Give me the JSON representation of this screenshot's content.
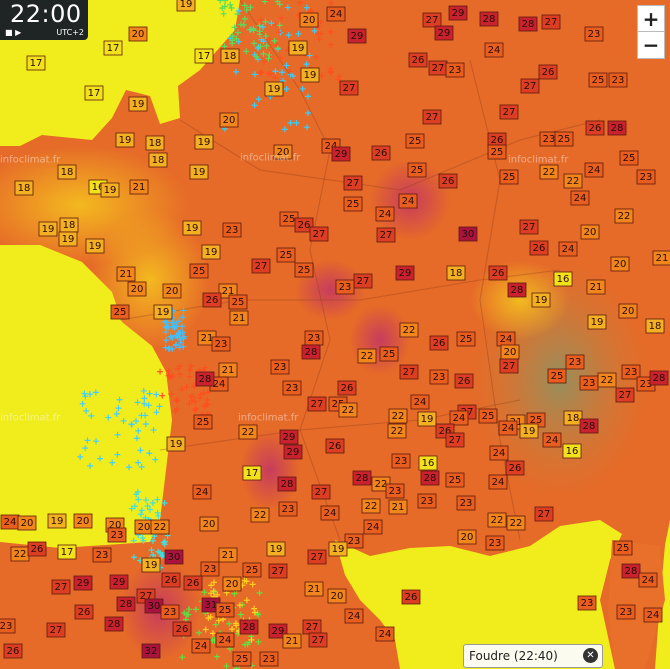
{
  "clock": {
    "time": "22:00",
    "timezone": "UTC+2"
  },
  "watermarks": [
    "infoclimat.fr",
    "infoclimat.fr",
    "infoclimat.fr",
    "infoclimat.fr",
    "infoclimat.fr"
  ],
  "zoom": {
    "in": "+",
    "out": "−"
  },
  "lightning_legend": "Foudre (22:40)",
  "temperatures": [
    17,
    20,
    19,
    17,
    17,
    18,
    19,
    20,
    24,
    29,
    27,
    29,
    28,
    28,
    27,
    29,
    24,
    23,
    17,
    19,
    19,
    19,
    27,
    26,
    27,
    23,
    26,
    25,
    23,
    27,
    20,
    19,
    18,
    19,
    18,
    27,
    27,
    23,
    25,
    26,
    28,
    25,
    26,
    20,
    24,
    29,
    26,
    25,
    18,
    25,
    25,
    22,
    24,
    23,
    18,
    16,
    19,
    21,
    19,
    27,
    26,
    25,
    22,
    24,
    25,
    24,
    24,
    22,
    18,
    19,
    19,
    19,
    23,
    25,
    26,
    27,
    27,
    30,
    27,
    20,
    19,
    19,
    25,
    27,
    25,
    25,
    27,
    29,
    18,
    26,
    26,
    24,
    20,
    21,
    21,
    20,
    20,
    21,
    26,
    25,
    23,
    28,
    16,
    19,
    21,
    21,
    25,
    19,
    20,
    18,
    19,
    21,
    23,
    23,
    22,
    26,
    25,
    24,
    20,
    21,
    24,
    23,
    28,
    22,
    25,
    27,
    23,
    26,
    27,
    23,
    25,
    23,
    22,
    23,
    23,
    28,
    27,
    28,
    23,
    26,
    27,
    25,
    22,
    22,
    24,
    27,
    25,
    24,
    21,
    25,
    18,
    28,
    25,
    22,
    19,
    26,
    24,
    19,
    19,
    22,
    29,
    29,
    26,
    27,
    24,
    16,
    24,
    23,
    16,
    26,
    17,
    28,
    27,
    28,
    22,
    25,
    24,
    28,
    24,
    23,
    23,
    23,
    21,
    22,
    22,
    23,
    24,
    24,
    20,
    19,
    20,
    20,
    20,
    22,
    20,
    22,
    22,
    27,
    24,
    23,
    20,
    23,
    23,
    22,
    26,
    17,
    23,
    19,
    30,
    21,
    19,
    27,
    19,
    25,
    23,
    25,
    27,
    20,
    29,
    29,
    27,
    26,
    26,
    28,
    24,
    21,
    20,
    27,
    30,
    31,
    26,
    23,
    23,
    24,
    26,
    28,
    25,
    23,
    24,
    23,
    27,
    28,
    26,
    28,
    29,
    27,
    24,
    21,
    27,
    24,
    26,
    32,
    25,
    23,
    24
  ]
}
